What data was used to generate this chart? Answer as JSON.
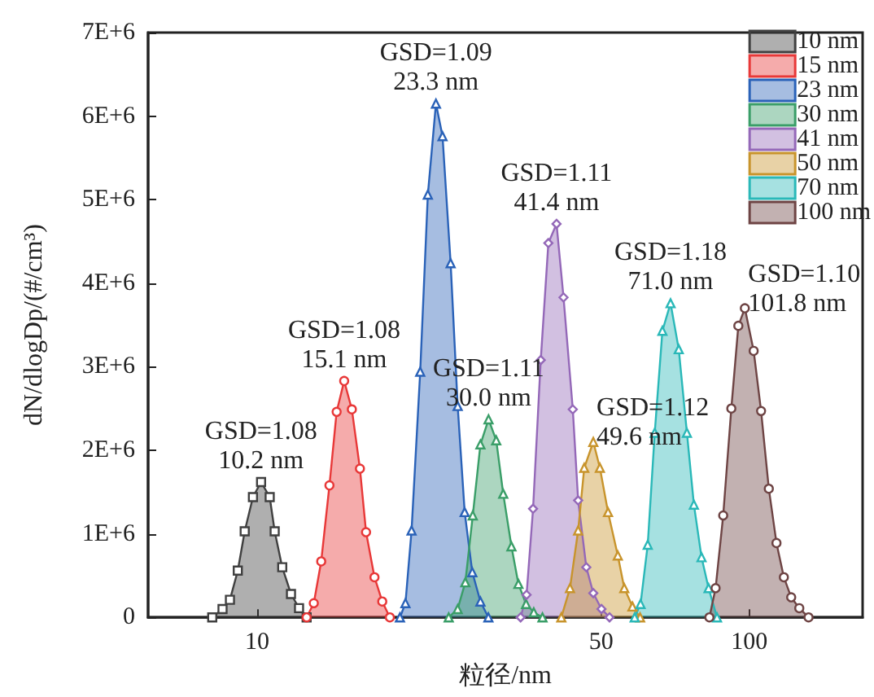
{
  "chart_data": {
    "type": "area",
    "xlabel": "粒径/nm",
    "ylabel": "dN/dlogDp/(#/cm³)",
    "log": "x",
    "xlim": [
      6,
      170
    ],
    "xticks": [
      10,
      50,
      100
    ],
    "ylim": [
      0,
      7000000
    ],
    "yticks": [
      0,
      {
        "value": 1000000,
        "label": "1E+6"
      },
      {
        "value": 2000000,
        "label": "2E+6"
      },
      {
        "value": 3000000,
        "label": "3E+6"
      },
      {
        "value": 4000000,
        "label": "4E+6"
      },
      {
        "value": 5000000,
        "label": "5E+6"
      },
      {
        "value": 6000000,
        "label": "6E+6"
      },
      {
        "value": 7000000,
        "label": "7E+6"
      }
    ],
    "grid": false,
    "legend": "top right",
    "series": [
      {
        "name": "10 nm",
        "color": "#404040",
        "marker": "square",
        "x": [
          8.1,
          8.5,
          8.8,
          9.13,
          9.43,
          9.8,
          10.18,
          10.6,
          10.85,
          11.24,
          11.71,
          12.16,
          12.6
        ],
        "values": [
          0,
          100000,
          210000,
          560000,
          1030000,
          1440000,
          1620000,
          1440000,
          1030000,
          600000,
          280000,
          110000,
          0
        ]
      },
      {
        "name": "15 nm",
        "color": "#e83838",
        "marker": "circle",
        "x": [
          12.6,
          13.03,
          13.49,
          14.02,
          14.5,
          15.02,
          15.57,
          16.17,
          16.64,
          17.31,
          17.95,
          18.6
        ],
        "values": [
          0,
          170000,
          670000,
          1580000,
          2460000,
          2830000,
          2490000,
          1780000,
          1020000,
          480000,
          190000,
          0
        ]
      },
      {
        "name": "23 nm",
        "color": "#2a62b8",
        "marker": "triangle",
        "x": [
          19.5,
          20.01,
          20.59,
          21.44,
          22.22,
          23.08,
          23.8,
          24.72,
          25.55,
          26.4,
          27.36,
          28.42,
          29.5
        ],
        "values": [
          0,
          170000,
          1040000,
          2940000,
          5060000,
          6150000,
          5760000,
          4240000,
          2530000,
          1260000,
          540000,
          190000,
          0
        ]
      },
      {
        "name": "30 nm",
        "color": "#3a9e68",
        "marker": "triangle",
        "x": [
          24.5,
          25.55,
          26.48,
          27.42,
          28.42,
          29.52,
          30.6,
          31.62,
          32.86,
          33.95,
          35.19,
          36.48,
          38
        ],
        "values": [
          0,
          100000,
          420000,
          1220000,
          2070000,
          2370000,
          2120000,
          1480000,
          850000,
          400000,
          160000,
          60000,
          0
        ]
      },
      {
        "name": "41 nm",
        "color": "#9468b8",
        "marker": "diamond",
        "x": [
          34.3,
          35.27,
          36.36,
          37.69,
          39.06,
          40.58,
          41.93,
          43.79,
          44.9,
          46.65,
          48.2,
          50.08,
          52
        ],
        "values": [
          0,
          270000,
          1300000,
          3080000,
          4480000,
          4710000,
          3830000,
          2490000,
          1400000,
          600000,
          290000,
          100000,
          0
        ]
      },
      {
        "name": "50 nm",
        "color": "#c8942c",
        "marker": "triangle",
        "x": [
          41.5,
          43.22,
          44.9,
          46.2,
          48.2,
          49.71,
          51.64,
          54.06,
          55.72,
          57.89,
          60
        ],
        "values": [
          0,
          350000,
          1040000,
          1790000,
          2100000,
          1790000,
          1260000,
          740000,
          350000,
          130000,
          0
        ]
      },
      {
        "name": "70 nm",
        "color": "#2ab8b8",
        "marker": "triangle",
        "x": [
          58.5,
          60.13,
          62.19,
          64.26,
          66.61,
          69.2,
          71.9,
          74.7,
          77.18,
          79.99,
          82.67,
          86
        ],
        "values": [
          0,
          160000,
          870000,
          2210000,
          3430000,
          3760000,
          3210000,
          2210000,
          1350000,
          720000,
          350000,
          0
        ]
      },
      {
        "name": "100 nm",
        "color": "#6e4444",
        "marker": "circle",
        "x": [
          83,
          85.44,
          88.53,
          91.96,
          95.03,
          97.97,
          102.1,
          105.7,
          109.6,
          113.6,
          117.6,
          121.7,
          126.4,
          132
        ],
        "values": [
          0,
          350000,
          1220000,
          2500000,
          3490000,
          3700000,
          3190000,
          2470000,
          1540000,
          890000,
          480000,
          240000,
          110000,
          0
        ]
      }
    ],
    "annotations": [
      {
        "text": "GSD=1.08\n10.2 nm",
        "x": 10.18,
        "y": 1620000
      },
      {
        "text": "GSD=1.08\n15.1 nm",
        "x": 15.02,
        "y": 2830000
      },
      {
        "text": "GSD=1.09\n23.3 nm",
        "x": 23.08,
        "y": 6150000
      },
      {
        "text": "GSD=1.11\n30.0 nm",
        "x": 29.52,
        "y": 2370000
      },
      {
        "text": "GSD=1.11\n41.4 nm",
        "x": 40.58,
        "y": 4710000
      },
      {
        "text": "GSD=1.12\n49.6 nm",
        "x": 48.2,
        "y": 2100000
      },
      {
        "text": "GSD=1.18\n71.0 nm",
        "x": 69.2,
        "y": 3760000
      },
      {
        "text": "GSD=1.10\n101.8 nm",
        "x": 97.97,
        "y": 3700000
      }
    ]
  }
}
